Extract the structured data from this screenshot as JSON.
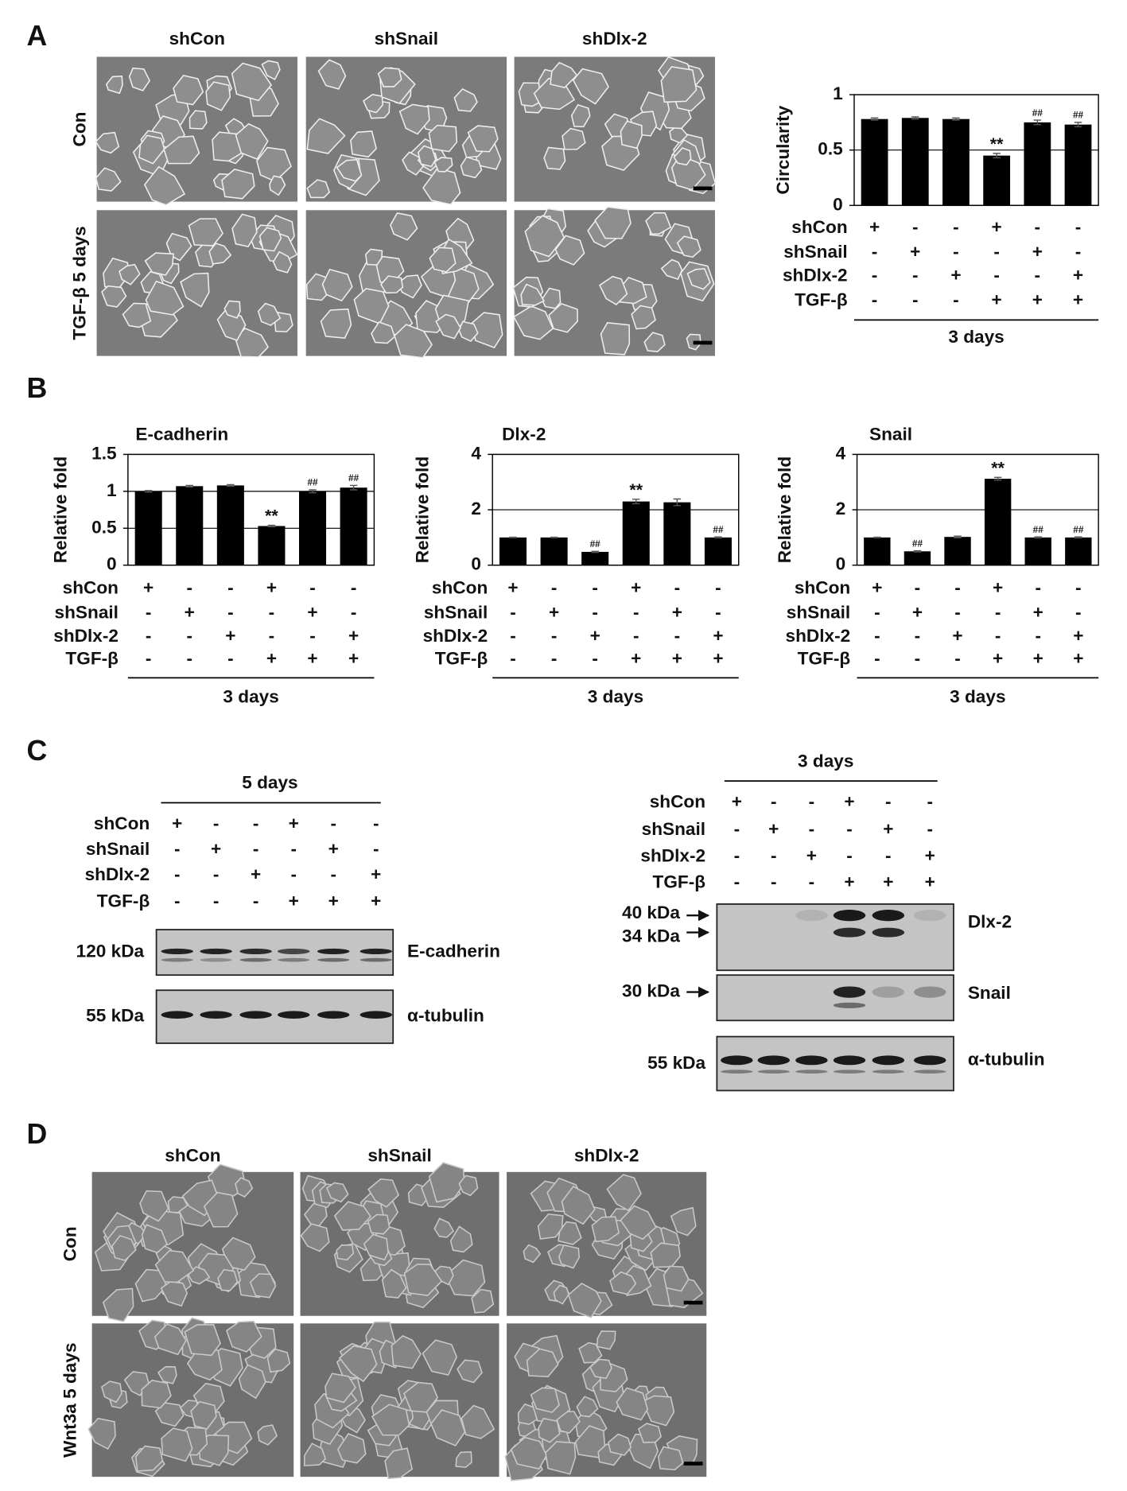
{
  "panel_labels": [
    "A",
    "B",
    "C",
    "D"
  ],
  "panel_a": {
    "columns": [
      "shCon",
      "shSnail",
      "shDlx-2"
    ],
    "rows": [
      "Con",
      "TGF-β 5 days"
    ]
  },
  "conditions": [
    {
      "label": "shCon",
      "signs": [
        "+",
        "-",
        "-",
        "+",
        "-",
        "-"
      ]
    },
    {
      "label": "shSnail",
      "signs": [
        "-",
        "+",
        "-",
        "-",
        "+",
        "-"
      ]
    },
    {
      "label": "shDlx-2",
      "signs": [
        "-",
        "-",
        "+",
        "-",
        "-",
        "+"
      ]
    },
    {
      "label": "TGF-β",
      "signs": [
        "-",
        "-",
        "-",
        "+",
        "+",
        "+"
      ]
    }
  ],
  "chart_data": [
    {
      "type": "bar",
      "ylabel": "Circularity",
      "xlabel": "3 days",
      "color": "#000000",
      "values": [
        0.78,
        0.79,
        0.78,
        0.45,
        0.75,
        0.73
      ],
      "errors": [
        0.01,
        0.01,
        0.01,
        0.02,
        0.02,
        0.02
      ],
      "annotations": [
        null,
        null,
        null,
        "**",
        "##",
        "##"
      ],
      "ylim": [
        0,
        1
      ],
      "yticks": [
        0,
        0.5,
        1
      ],
      "grid": true
    },
    {
      "type": "bar",
      "title": "E-cadherin",
      "ylabel": "Relative fold",
      "xlabel": "3 days",
      "color": "#000000",
      "values": [
        1,
        1.07,
        1.08,
        0.53,
        1.0,
        1.05
      ],
      "errors": [
        0.01,
        0.01,
        0.01,
        0.01,
        0.02,
        0.03
      ],
      "annotations": [
        null,
        null,
        null,
        "**",
        "##",
        "##"
      ],
      "ylim": [
        0,
        1.5
      ],
      "yticks": [
        0,
        0.5,
        1,
        1.5
      ],
      "grid": true
    },
    {
      "type": "bar",
      "title": "Dlx-2",
      "ylabel": "Relative fold",
      "xlabel": "3 days",
      "color": "#000000",
      "values": [
        1,
        1,
        0.48,
        2.3,
        2.27,
        1
      ],
      "errors": [
        0.01,
        0.01,
        0.02,
        0.08,
        0.12,
        0.02
      ],
      "annotations": [
        null,
        null,
        "##",
        "**",
        null,
        "##"
      ],
      "ylim": [
        0,
        4
      ],
      "yticks": [
        0,
        2,
        4
      ],
      "grid": true
    },
    {
      "type": "bar",
      "title": "Snail",
      "ylabel": "Relative fold",
      "xlabel": "3 days",
      "color": "#000000",
      "values": [
        1,
        0.5,
        1.02,
        3.12,
        1,
        1
      ],
      "errors": [
        0.01,
        0.02,
        0.03,
        0.05,
        0.02,
        0.02
      ],
      "annotations": [
        null,
        "##",
        null,
        "**",
        "##",
        "##"
      ],
      "ylim": [
        0,
        4
      ],
      "yticks": [
        0,
        2,
        4
      ],
      "grid": true
    }
  ],
  "panel_c": {
    "left": {
      "header": "5 days",
      "blots": [
        {
          "mw": [
            "120 kDa"
          ],
          "name": "E-cadherin"
        },
        {
          "mw": [
            "55 kDa"
          ],
          "name": "α-tubulin"
        }
      ]
    },
    "right": {
      "header": "3 days",
      "blots": [
        {
          "mw": [
            "40 kDa",
            "34 kDa"
          ],
          "name": "Dlx-2"
        },
        {
          "mw": [
            "30 kDa"
          ],
          "name": "Snail"
        },
        {
          "mw": [
            "55 kDa"
          ],
          "name": "α-tubulin"
        }
      ]
    }
  },
  "panel_d": {
    "columns": [
      "shCon",
      "shSnail",
      "shDlx-2"
    ],
    "rows": [
      "Con",
      "Wnt3a 5 days"
    ]
  }
}
